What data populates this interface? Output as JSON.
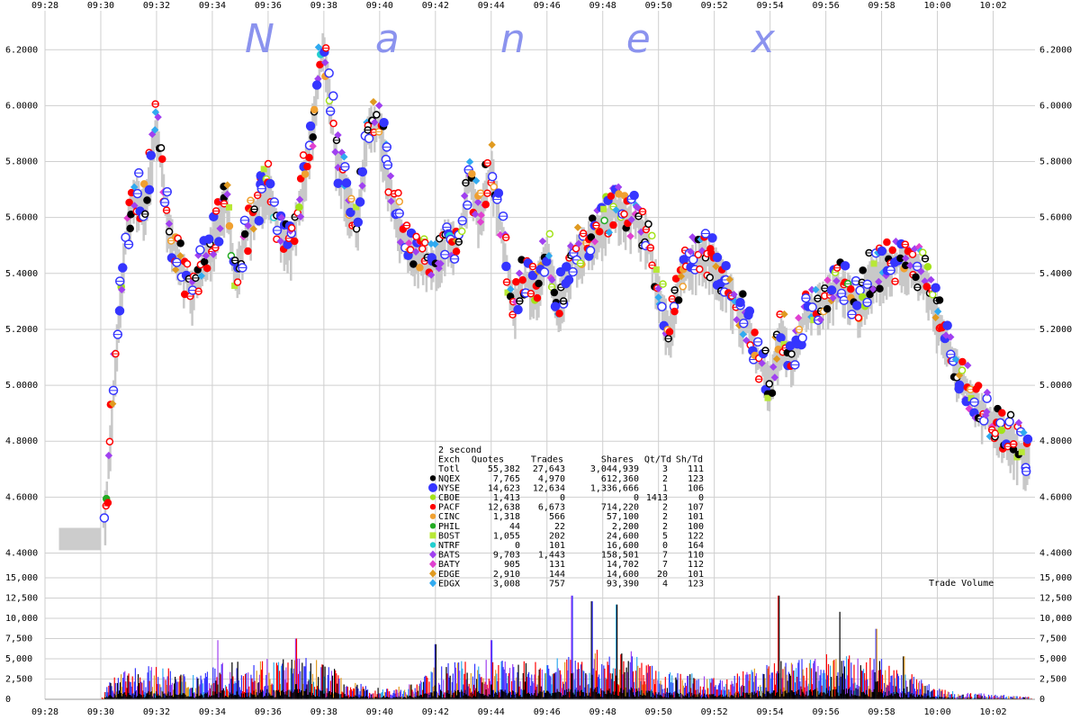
{
  "chart_data": [
    {
      "type": "scatter",
      "title": "",
      "watermark": "Nanex",
      "x_ticks": [
        "09:28",
        "09:30",
        "09:32",
        "09:34",
        "09:36",
        "09:38",
        "09:40",
        "09:42",
        "09:44",
        "09:46",
        "09:48",
        "09:50",
        "09:52",
        "09:54",
        "09:56",
        "09:58",
        "10:00",
        "10:02"
      ],
      "x_range_minutes": [
        568,
        603.5
      ],
      "y_ticks": [
        "6.2000",
        "6.0000",
        "5.8000",
        "5.6000",
        "5.4000",
        "5.2000",
        "5.0000",
        "4.8000",
        "4.6000",
        "4.4000"
      ],
      "y_range": [
        4.35,
        6.32
      ],
      "grid": true,
      "price_path": [
        {
          "t": 568.5,
          "p": 4.44
        },
        {
          "t": 569.5,
          "p": 4.45
        },
        {
          "t": 570.0,
          "p": 4.44
        },
        {
          "t": 570.2,
          "p": 4.6
        },
        {
          "t": 570.6,
          "p": 5.2
        },
        {
          "t": 570.9,
          "p": 5.55
        },
        {
          "t": 571.2,
          "p": 5.7
        },
        {
          "t": 571.6,
          "p": 5.65
        },
        {
          "t": 572.0,
          "p": 5.95
        },
        {
          "t": 572.4,
          "p": 5.6
        },
        {
          "t": 572.8,
          "p": 5.45
        },
        {
          "t": 573.3,
          "p": 5.35
        },
        {
          "t": 573.7,
          "p": 5.45
        },
        {
          "t": 574.1,
          "p": 5.55
        },
        {
          "t": 574.5,
          "p": 5.7
        },
        {
          "t": 574.8,
          "p": 5.4
        },
        {
          "t": 575.2,
          "p": 5.55
        },
        {
          "t": 575.6,
          "p": 5.65
        },
        {
          "t": 576.0,
          "p": 5.75
        },
        {
          "t": 576.4,
          "p": 5.55
        },
        {
          "t": 576.8,
          "p": 5.5
        },
        {
          "t": 577.2,
          "p": 5.7
        },
        {
          "t": 577.6,
          "p": 5.95
        },
        {
          "t": 578.0,
          "p": 6.25
        },
        {
          "t": 578.4,
          "p": 5.85
        },
        {
          "t": 578.8,
          "p": 5.7
        },
        {
          "t": 579.2,
          "p": 5.6
        },
        {
          "t": 579.6,
          "p": 5.95
        },
        {
          "t": 580.0,
          "p": 5.95
        },
        {
          "t": 580.4,
          "p": 5.7
        },
        {
          "t": 580.8,
          "p": 5.55
        },
        {
          "t": 581.2,
          "p": 5.48
        },
        {
          "t": 581.6,
          "p": 5.45
        },
        {
          "t": 582.0,
          "p": 5.45
        },
        {
          "t": 582.4,
          "p": 5.55
        },
        {
          "t": 582.8,
          "p": 5.52
        },
        {
          "t": 583.2,
          "p": 5.75
        },
        {
          "t": 583.6,
          "p": 5.62
        },
        {
          "t": 584.0,
          "p": 5.8
        },
        {
          "t": 584.4,
          "p": 5.55
        },
        {
          "t": 584.8,
          "p": 5.3
        },
        {
          "t": 585.2,
          "p": 5.4
        },
        {
          "t": 585.6,
          "p": 5.35
        },
        {
          "t": 586.0,
          "p": 5.5
        },
        {
          "t": 586.4,
          "p": 5.3
        },
        {
          "t": 586.8,
          "p": 5.45
        },
        {
          "t": 587.2,
          "p": 5.5
        },
        {
          "t": 587.6,
          "p": 5.55
        },
        {
          "t": 588.0,
          "p": 5.58
        },
        {
          "t": 588.4,
          "p": 5.65
        },
        {
          "t": 588.8,
          "p": 5.62
        },
        {
          "t": 589.2,
          "p": 5.6
        },
        {
          "t": 589.6,
          "p": 5.55
        },
        {
          "t": 590.0,
          "p": 5.35
        },
        {
          "t": 590.4,
          "p": 5.2
        },
        {
          "t": 590.8,
          "p": 5.42
        },
        {
          "t": 591.2,
          "p": 5.45
        },
        {
          "t": 591.6,
          "p": 5.48
        },
        {
          "t": 592.0,
          "p": 5.45
        },
        {
          "t": 592.4,
          "p": 5.38
        },
        {
          "t": 592.8,
          "p": 5.3
        },
        {
          "t": 593.2,
          "p": 5.22
        },
        {
          "t": 593.6,
          "p": 5.1
        },
        {
          "t": 594.0,
          "p": 5.02
        },
        {
          "t": 594.4,
          "p": 5.2
        },
        {
          "t": 594.8,
          "p": 5.1
        },
        {
          "t": 595.2,
          "p": 5.25
        },
        {
          "t": 595.6,
          "p": 5.3
        },
        {
          "t": 596.0,
          "p": 5.33
        },
        {
          "t": 596.4,
          "p": 5.38
        },
        {
          "t": 596.8,
          "p": 5.35
        },
        {
          "t": 597.2,
          "p": 5.3
        },
        {
          "t": 597.6,
          "p": 5.4
        },
        {
          "t": 598.0,
          "p": 5.42
        },
        {
          "t": 598.4,
          "p": 5.45
        },
        {
          "t": 598.8,
          "p": 5.46
        },
        {
          "t": 599.2,
          "p": 5.44
        },
        {
          "t": 599.6,
          "p": 5.38
        },
        {
          "t": 600.0,
          "p": 5.25
        },
        {
          "t": 600.4,
          "p": 5.15
        },
        {
          "t": 600.8,
          "p": 5.05
        },
        {
          "t": 601.2,
          "p": 4.98
        },
        {
          "t": 601.6,
          "p": 4.92
        },
        {
          "t": 602.0,
          "p": 4.88
        },
        {
          "t": 602.4,
          "p": 4.85
        },
        {
          "t": 602.8,
          "p": 4.8
        },
        {
          "t": 603.1,
          "p": 4.76
        }
      ]
    },
    {
      "type": "bar",
      "ylabel": "Trade Volume",
      "y_ticks": [
        "15,000",
        "12,500",
        "10,000",
        "7,500",
        "5,000",
        "2,500",
        "0"
      ],
      "y_range": [
        0,
        15000
      ],
      "volume_profile": [
        {
          "t": 570.0,
          "v": 0
        },
        {
          "t": 570.3,
          "v": 1800
        },
        {
          "t": 571.0,
          "v": 3500
        },
        {
          "t": 572.0,
          "v": 3500
        },
        {
          "t": 573.0,
          "v": 2800
        },
        {
          "t": 574.0,
          "v": 3500
        },
        {
          "t": 575.0,
          "v": 4200
        },
        {
          "t": 576.0,
          "v": 4500
        },
        {
          "t": 577.0,
          "v": 4500
        },
        {
          "t": 578.0,
          "v": 4000
        },
        {
          "t": 579.0,
          "v": 1800
        },
        {
          "t": 580.0,
          "v": 1200
        },
        {
          "t": 581.0,
          "v": 1500
        },
        {
          "t": 582.0,
          "v": 3500
        },
        {
          "t": 583.0,
          "v": 4000
        },
        {
          "t": 584.0,
          "v": 4200
        },
        {
          "t": 585.0,
          "v": 4000
        },
        {
          "t": 586.0,
          "v": 4200
        },
        {
          "t": 587.0,
          "v": 4800
        },
        {
          "t": 588.0,
          "v": 5200
        },
        {
          "t": 589.0,
          "v": 5000
        },
        {
          "t": 590.0,
          "v": 3200
        },
        {
          "t": 591.0,
          "v": 2800
        },
        {
          "t": 592.0,
          "v": 2200
        },
        {
          "t": 593.0,
          "v": 3000
        },
        {
          "t": 594.0,
          "v": 3800
        },
        {
          "t": 595.0,
          "v": 4200
        },
        {
          "t": 596.0,
          "v": 4800
        },
        {
          "t": 597.0,
          "v": 4500
        },
        {
          "t": 598.0,
          "v": 4200
        },
        {
          "t": 599.0,
          "v": 2800
        },
        {
          "t": 600.0,
          "v": 1200
        },
        {
          "t": 601.0,
          "v": 700
        },
        {
          "t": 602.0,
          "v": 600
        },
        {
          "t": 603.0,
          "v": 300
        }
      ],
      "peaks": [
        {
          "t": 574.2,
          "v": 7300
        },
        {
          "t": 577.0,
          "v": 7500
        },
        {
          "t": 582.0,
          "v": 6800
        },
        {
          "t": 584.0,
          "v": 7300
        },
        {
          "t": 586.9,
          "v": 12800
        },
        {
          "t": 587.6,
          "v": 12100
        },
        {
          "t": 588.5,
          "v": 11700
        },
        {
          "t": 594.3,
          "v": 12800
        },
        {
          "t": 596.5,
          "v": 10800
        },
        {
          "t": 597.8,
          "v": 8700
        },
        {
          "t": 598.8,
          "v": 5300
        }
      ]
    }
  ],
  "legend": {
    "heading": "2 second",
    "columns": [
      "Exch",
      "Quotes",
      "Trades",
      "Shares",
      "Qt/Td",
      "Sh/Td"
    ],
    "rows": [
      {
        "exch": "Totl",
        "quotes": "55,382",
        "trades": "27,643",
        "shares": "3,044,939",
        "qt_td": "3",
        "sh_td": "111",
        "color": "",
        "marker": "none"
      },
      {
        "exch": "NQEX",
        "quotes": "7,765",
        "trades": "4,970",
        "shares": "612,360",
        "qt_td": "2",
        "sh_td": "123",
        "color": "#000000",
        "marker": "circle"
      },
      {
        "exch": "NYSE",
        "quotes": "14,623",
        "trades": "12,634",
        "shares": "1,336,666",
        "qt_td": "1",
        "sh_td": "106",
        "color": "#3535ff",
        "marker": "circle-large"
      },
      {
        "exch": "CBOE",
        "quotes": "1,413",
        "trades": "0",
        "shares": "0",
        "qt_td": "1413",
        "sh_td": "0",
        "color": "#a3e21a",
        "marker": "circle"
      },
      {
        "exch": "PACF",
        "quotes": "12,638",
        "trades": "6,673",
        "shares": "714,220",
        "qt_td": "2",
        "sh_td": "107",
        "color": "#ff0000",
        "marker": "circle"
      },
      {
        "exch": "CINC",
        "quotes": "1,318",
        "trades": "566",
        "shares": "57,100",
        "qt_td": "2",
        "sh_td": "101",
        "color": "#f0a030",
        "marker": "circle"
      },
      {
        "exch": "PHIL",
        "quotes": "44",
        "trades": "22",
        "shares": "2,200",
        "qt_td": "2",
        "sh_td": "100",
        "color": "#22aa22",
        "marker": "circle"
      },
      {
        "exch": "BOST",
        "quotes": "1,055",
        "trades": "202",
        "shares": "24,600",
        "qt_td": "5",
        "sh_td": "122",
        "color": "#b8e836",
        "marker": "square"
      },
      {
        "exch": "NTRF",
        "quotes": "0",
        "trades": "101",
        "shares": "16,600",
        "qt_td": "0",
        "sh_td": "164",
        "color": "#22cfcf",
        "marker": "circle"
      },
      {
        "exch": "BATS",
        "quotes": "9,703",
        "trades": "1,443",
        "shares": "158,501",
        "qt_td": "7",
        "sh_td": "110",
        "color": "#a040f0",
        "marker": "diamond"
      },
      {
        "exch": "BATY",
        "quotes": "905",
        "trades": "131",
        "shares": "14,702",
        "qt_td": "7",
        "sh_td": "112",
        "color": "#e040d0",
        "marker": "diamond"
      },
      {
        "exch": "EDGE",
        "quotes": "2,910",
        "trades": "144",
        "shares": "14,600",
        "qt_td": "20",
        "sh_td": "101",
        "color": "#e09a20",
        "marker": "diamond"
      },
      {
        "exch": "EDGX",
        "quotes": "3,008",
        "trades": "757",
        "shares": "93,390",
        "qt_td": "4",
        "sh_td": "123",
        "color": "#30aaf0",
        "marker": "diamond"
      }
    ]
  }
}
